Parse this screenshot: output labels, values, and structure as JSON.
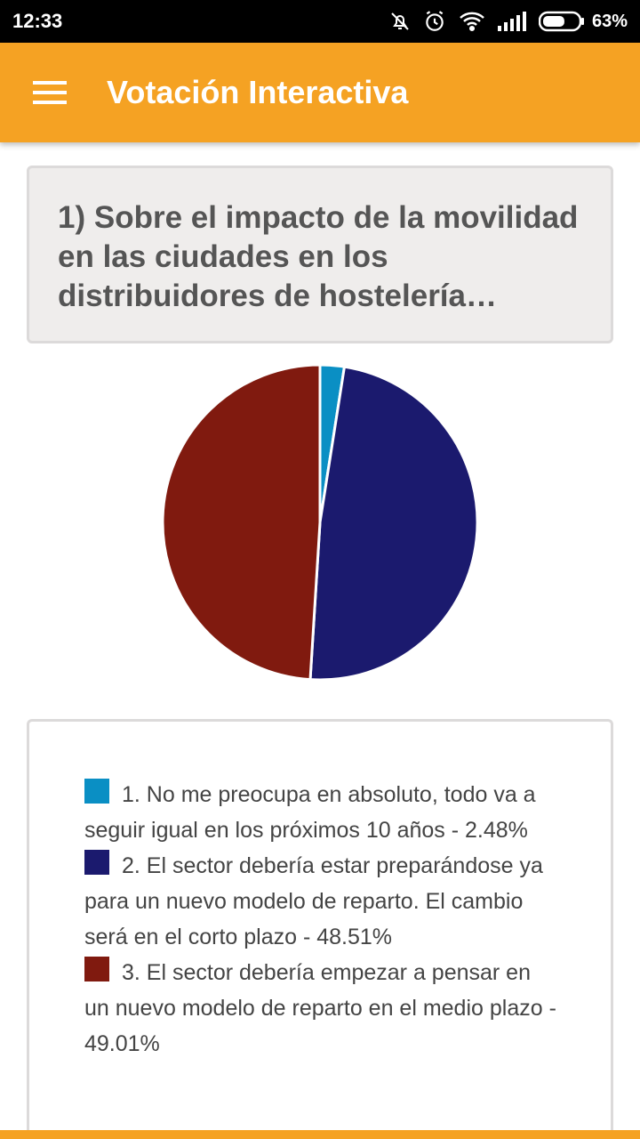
{
  "status_bar": {
    "time": "12:33",
    "battery_percent": "63%",
    "battery_level": 0.63,
    "icons": [
      "mute-icon",
      "alarm-icon",
      "wifi-icon",
      "signal-icon",
      "battery-icon"
    ]
  },
  "app_bar": {
    "title": "Votación Interactiva",
    "color": "#F5A223",
    "menu_icon": "menu-icon"
  },
  "question": {
    "text": "1) Sobre el impacto de la movilidad en las ciudades en los distribuidores de hostelería…"
  },
  "chart_data": {
    "type": "pie",
    "values": [
      2.48,
      48.51,
      49.01
    ],
    "colors": [
      "#0A8FC4",
      "#1B1A6E",
      "#801A0F"
    ]
  },
  "legend": {
    "items": [
      {
        "label": "1. No me preocupa en absoluto, todo va a seguir igual en los próximos 10 años - 2.48%",
        "color": "#0A8FC4"
      },
      {
        "label": "2. El sector debería estar preparándose ya para un nuevo modelo de reparto. El cambio será en el corto plazo - 48.51%",
        "color": "#1B1A6E"
      },
      {
        "label": "3. El sector debería empezar a pensar en un nuevo modelo de reparto en el medio plazo - 49.01%",
        "color": "#801A0F"
      }
    ]
  }
}
